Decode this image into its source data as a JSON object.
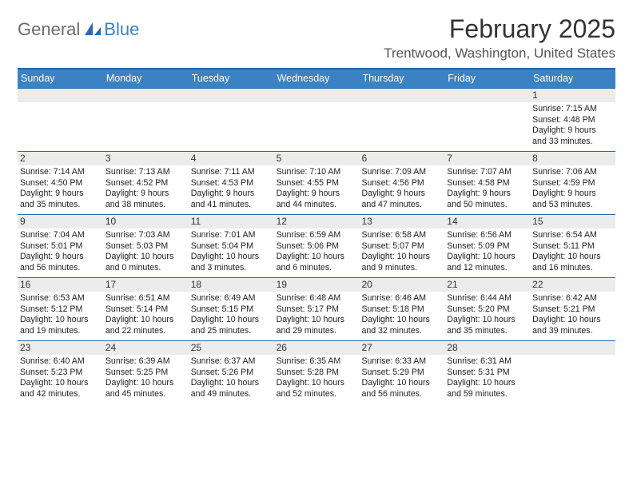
{
  "logo": {
    "text1": "General",
    "text2": "Blue"
  },
  "title": "February 2025",
  "location": "Trentwood, Washington, United States",
  "colors": {
    "header_bar": "#3b82c4",
    "header_border": "#2a6aa8",
    "daynum_bg": "#ececec",
    "logo_gray": "#6b6b6b",
    "logo_blue": "#3b82c4"
  },
  "day_names": [
    "Sunday",
    "Monday",
    "Tuesday",
    "Wednesday",
    "Thursday",
    "Friday",
    "Saturday"
  ],
  "weeks": [
    [
      {
        "empty": true
      },
      {
        "empty": true
      },
      {
        "empty": true
      },
      {
        "empty": true
      },
      {
        "empty": true
      },
      {
        "empty": true
      },
      {
        "n": "1",
        "sr": "Sunrise: 7:15 AM",
        "ss": "Sunset: 4:48 PM",
        "d1": "Daylight: 9 hours",
        "d2": "and 33 minutes."
      }
    ],
    [
      {
        "n": "2",
        "sr": "Sunrise: 7:14 AM",
        "ss": "Sunset: 4:50 PM",
        "d1": "Daylight: 9 hours",
        "d2": "and 35 minutes."
      },
      {
        "n": "3",
        "sr": "Sunrise: 7:13 AM",
        "ss": "Sunset: 4:52 PM",
        "d1": "Daylight: 9 hours",
        "d2": "and 38 minutes."
      },
      {
        "n": "4",
        "sr": "Sunrise: 7:11 AM",
        "ss": "Sunset: 4:53 PM",
        "d1": "Daylight: 9 hours",
        "d2": "and 41 minutes."
      },
      {
        "n": "5",
        "sr": "Sunrise: 7:10 AM",
        "ss": "Sunset: 4:55 PM",
        "d1": "Daylight: 9 hours",
        "d2": "and 44 minutes."
      },
      {
        "n": "6",
        "sr": "Sunrise: 7:09 AM",
        "ss": "Sunset: 4:56 PM",
        "d1": "Daylight: 9 hours",
        "d2": "and 47 minutes."
      },
      {
        "n": "7",
        "sr": "Sunrise: 7:07 AM",
        "ss": "Sunset: 4:58 PM",
        "d1": "Daylight: 9 hours",
        "d2": "and 50 minutes."
      },
      {
        "n": "8",
        "sr": "Sunrise: 7:06 AM",
        "ss": "Sunset: 4:59 PM",
        "d1": "Daylight: 9 hours",
        "d2": "and 53 minutes."
      }
    ],
    [
      {
        "n": "9",
        "sr": "Sunrise: 7:04 AM",
        "ss": "Sunset: 5:01 PM",
        "d1": "Daylight: 9 hours",
        "d2": "and 56 minutes."
      },
      {
        "n": "10",
        "sr": "Sunrise: 7:03 AM",
        "ss": "Sunset: 5:03 PM",
        "d1": "Daylight: 10 hours",
        "d2": "and 0 minutes."
      },
      {
        "n": "11",
        "sr": "Sunrise: 7:01 AM",
        "ss": "Sunset: 5:04 PM",
        "d1": "Daylight: 10 hours",
        "d2": "and 3 minutes."
      },
      {
        "n": "12",
        "sr": "Sunrise: 6:59 AM",
        "ss": "Sunset: 5:06 PM",
        "d1": "Daylight: 10 hours",
        "d2": "and 6 minutes."
      },
      {
        "n": "13",
        "sr": "Sunrise: 6:58 AM",
        "ss": "Sunset: 5:07 PM",
        "d1": "Daylight: 10 hours",
        "d2": "and 9 minutes."
      },
      {
        "n": "14",
        "sr": "Sunrise: 6:56 AM",
        "ss": "Sunset: 5:09 PM",
        "d1": "Daylight: 10 hours",
        "d2": "and 12 minutes."
      },
      {
        "n": "15",
        "sr": "Sunrise: 6:54 AM",
        "ss": "Sunset: 5:11 PM",
        "d1": "Daylight: 10 hours",
        "d2": "and 16 minutes."
      }
    ],
    [
      {
        "n": "16",
        "sr": "Sunrise: 6:53 AM",
        "ss": "Sunset: 5:12 PM",
        "d1": "Daylight: 10 hours",
        "d2": "and 19 minutes."
      },
      {
        "n": "17",
        "sr": "Sunrise: 6:51 AM",
        "ss": "Sunset: 5:14 PM",
        "d1": "Daylight: 10 hours",
        "d2": "and 22 minutes."
      },
      {
        "n": "18",
        "sr": "Sunrise: 6:49 AM",
        "ss": "Sunset: 5:15 PM",
        "d1": "Daylight: 10 hours",
        "d2": "and 25 minutes."
      },
      {
        "n": "19",
        "sr": "Sunrise: 6:48 AM",
        "ss": "Sunset: 5:17 PM",
        "d1": "Daylight: 10 hours",
        "d2": "and 29 minutes."
      },
      {
        "n": "20",
        "sr": "Sunrise: 6:46 AM",
        "ss": "Sunset: 5:18 PM",
        "d1": "Daylight: 10 hours",
        "d2": "and 32 minutes."
      },
      {
        "n": "21",
        "sr": "Sunrise: 6:44 AM",
        "ss": "Sunset: 5:20 PM",
        "d1": "Daylight: 10 hours",
        "d2": "and 35 minutes."
      },
      {
        "n": "22",
        "sr": "Sunrise: 6:42 AM",
        "ss": "Sunset: 5:21 PM",
        "d1": "Daylight: 10 hours",
        "d2": "and 39 minutes."
      }
    ],
    [
      {
        "n": "23",
        "sr": "Sunrise: 6:40 AM",
        "ss": "Sunset: 5:23 PM",
        "d1": "Daylight: 10 hours",
        "d2": "and 42 minutes."
      },
      {
        "n": "24",
        "sr": "Sunrise: 6:39 AM",
        "ss": "Sunset: 5:25 PM",
        "d1": "Daylight: 10 hours",
        "d2": "and 45 minutes."
      },
      {
        "n": "25",
        "sr": "Sunrise: 6:37 AM",
        "ss": "Sunset: 5:26 PM",
        "d1": "Daylight: 10 hours",
        "d2": "and 49 minutes."
      },
      {
        "n": "26",
        "sr": "Sunrise: 6:35 AM",
        "ss": "Sunset: 5:28 PM",
        "d1": "Daylight: 10 hours",
        "d2": "and 52 minutes."
      },
      {
        "n": "27",
        "sr": "Sunrise: 6:33 AM",
        "ss": "Sunset: 5:29 PM",
        "d1": "Daylight: 10 hours",
        "d2": "and 56 minutes."
      },
      {
        "n": "28",
        "sr": "Sunrise: 6:31 AM",
        "ss": "Sunset: 5:31 PM",
        "d1": "Daylight: 10 hours",
        "d2": "and 59 minutes."
      },
      {
        "empty": true
      }
    ]
  ]
}
